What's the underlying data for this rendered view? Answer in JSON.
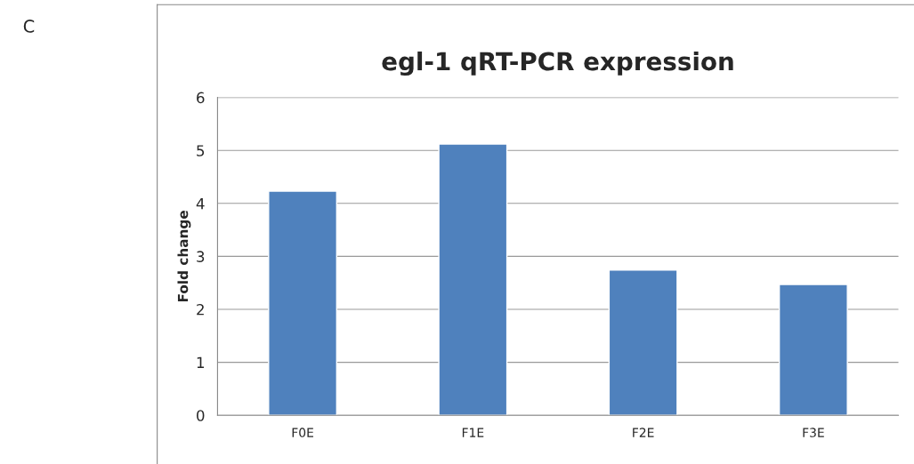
{
  "chart_data": {
    "type": "bar",
    "title": "egl-1 qRT-PCR expression",
    "ylabel": "Fold change",
    "categories": [
      "F0E",
      "F1E",
      "F2E",
      "F3E"
    ],
    "values": [
      4.23,
      5.12,
      2.74,
      2.47
    ],
    "color": "#4f81bd",
    "ylim": [
      0,
      6
    ],
    "yticks": [
      0,
      1,
      2,
      3,
      4,
      5,
      6
    ],
    "grid": "y",
    "annotations": [
      "C"
    ]
  }
}
